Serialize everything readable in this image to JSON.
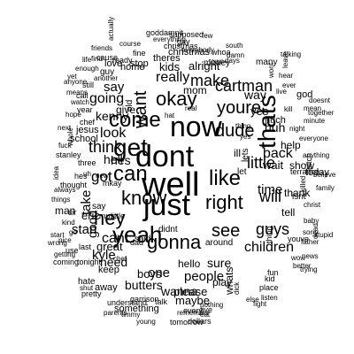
{
  "cloud": {
    "words": [
      "well",
      "dont",
      "just",
      "now",
      "get",
      "yeah",
      "can",
      "right",
      "like",
      "know",
      "thats",
      "come",
      "gonna",
      "see",
      "youre",
      "okay",
      "cartman",
      "hey",
      "dude",
      "guys",
      "will",
      "think",
      "cant",
      "look",
      "make",
      "little",
      "people",
      "got",
      "time",
      "one",
      "going",
      "really",
      "back",
      "kyle",
      "want",
      "say",
      "stan",
      "kenny",
      "children",
      "good",
      "help",
      "need",
      "wait",
      "yes",
      "hes",
      "mom",
      "boys",
      "way",
      "show",
      "huh",
      "hello",
      "sure",
      "kids",
      "alright",
      "theres",
      "christmas",
      "money",
      "tell",
      "give",
      "wanna",
      "butters",
      "eric",
      "jesus",
      "school",
      "thank",
      "love",
      "said",
      "maybe",
      "dad",
      "great",
      "please",
      "home",
      "something",
      "around",
      "away",
      "stop",
      "man",
      "guy",
      "play",
      "keep",
      "lets",
      "hell",
      "take",
      "ill",
      "let",
      "didnt",
      "thing",
      "whats",
      "today",
      "much",
      "god",
      "goddamnit",
      "supposed",
      "few",
      "damn",
      "days",
      "everybody",
      "gay",
      "many",
      "christmas",
      "whoa",
      "course",
      "actually",
      "everything",
      "ready",
      "friends",
      "cause",
      "fine",
      "life",
      "south",
      "find",
      "enough",
      "another",
      "yet",
      "anyone",
      "still",
      "watch",
      "call",
      "means",
      "year",
      "hope",
      "next",
      "whole",
      "stanley",
      "fuck",
      "idea",
      "always",
      "thought",
      "things",
      "getting",
      "coming",
      "use",
      "wrong",
      "start",
      "shut",
      "hate",
      "understand",
      "pretty",
      "parents",
      "timmy",
      "garrison",
      "young",
      "tomorrow",
      "talk",
      "dollars",
      "every",
      "remember",
      "five",
      "eat",
      "nothing",
      "fight",
      "place",
      "listen",
      "else",
      "dick",
      "kid",
      "fun",
      "anything",
      "bitch",
      "trying",
      "better",
      "isnt",
      "killed",
      "christ",
      "baby",
      "youve",
      "news",
      "wow",
      "stupid",
      "father",
      "dead",
      "sorry",
      "mean",
      "believe",
      "family",
      "kill",
      "minute",
      "together",
      "hear",
      "leave",
      "wont",
      "talking",
      "mkay",
      "chef",
      "live",
      "ever",
      "doesnt",
      "terrance",
      "everyone",
      "night",
      "town",
      "hat",
      "real",
      "must",
      "three",
      "last",
      "old",
      "tonight",
      "new",
      "chef",
      "little",
      "say",
      "sir",
      "go",
      "uh",
      "hes",
      "kind",
      "nice",
      "yes",
      "thing"
    ]
  }
}
